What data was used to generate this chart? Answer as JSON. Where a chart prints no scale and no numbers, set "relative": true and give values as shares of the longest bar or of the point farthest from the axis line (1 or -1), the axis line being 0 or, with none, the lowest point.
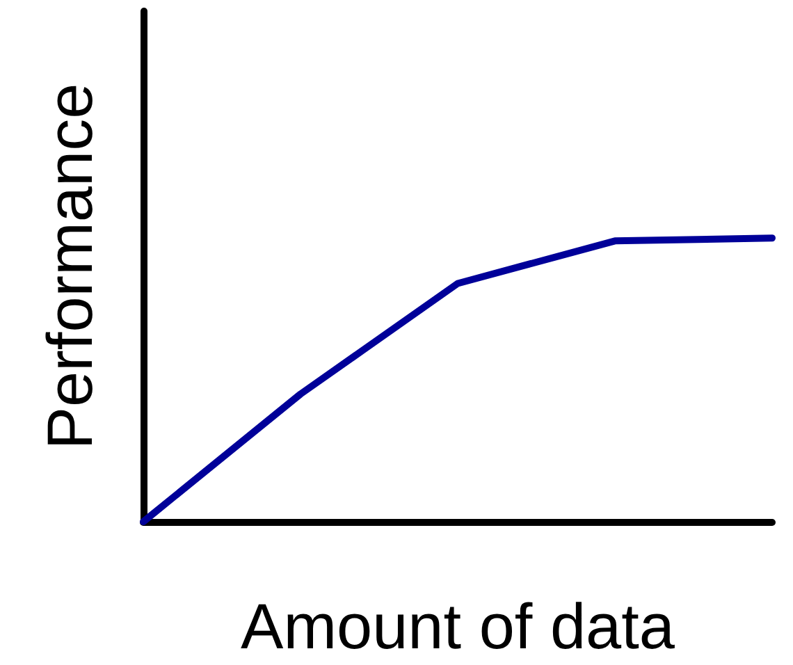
{
  "chart_data": {
    "type": "line",
    "xlabel": "Amount of data",
    "ylabel": "Performance",
    "relative": true,
    "categories": [
      null,
      null,
      null,
      null,
      null
    ],
    "series": [
      {
        "color": "#000099",
        "values": [
          0,
          0.45,
          0.84,
          0.99,
          1
        ]
      }
    ],
    "marker": "none",
    "line_style": "solid",
    "grid": false,
    "tick_labels": false
  }
}
